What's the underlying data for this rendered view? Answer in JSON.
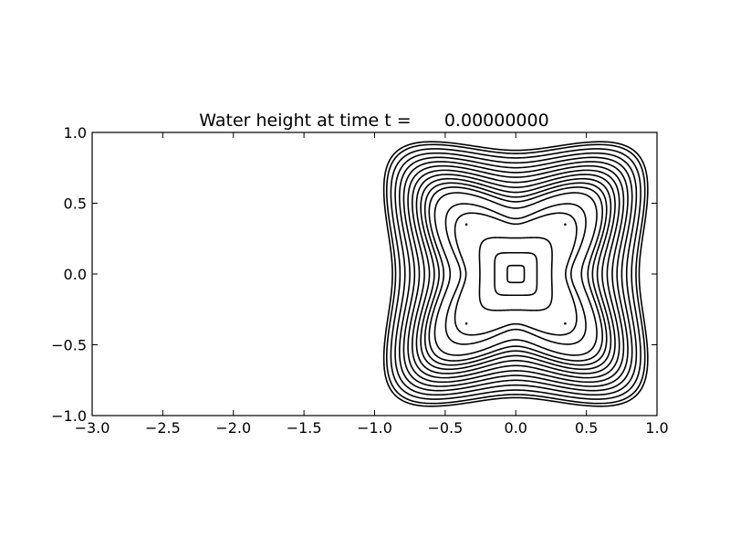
{
  "chart_data": {
    "type": "contour",
    "title": "Water height at time t =      0.00000000",
    "xlim": [
      -3.0,
      1.0
    ],
    "ylim": [
      -1.0,
      1.0
    ],
    "x_ticks": [
      -3.0,
      -2.5,
      -2.0,
      -1.5,
      -1.0,
      -0.5,
      0.0,
      0.5,
      1.0
    ],
    "y_ticks": [
      -1.0,
      -0.5,
      0.0,
      0.5,
      1.0
    ],
    "x_tick_labels": [
      "−3.0",
      "−2.5",
      "−2.0",
      "−1.5",
      "−1.0",
      "−0.5",
      "0.0",
      "0.5",
      "1.0"
    ],
    "y_tick_labels": [
      "−1.0",
      "−0.5",
      "0.0",
      "0.5",
      "1.0"
    ],
    "grid": false,
    "line_color": "#000000",
    "contours": {
      "shape": "four-armed star centered at (0,0), arms toward the domain corners",
      "center": [
        0.0,
        0.0
      ],
      "levels": [
        {
          "half_width": 0.06,
          "star": 0.0
        },
        {
          "half_width": 0.15,
          "star": 0.0
        },
        {
          "half_width": 0.26,
          "star": 0.05
        },
        {
          "half_width": 0.45,
          "star": 0.48
        },
        {
          "half_width": 0.52,
          "star": 0.55
        },
        {
          "half_width": 0.6,
          "star": 0.5
        },
        {
          "half_width": 0.64,
          "star": 0.45
        },
        {
          "half_width": 0.67,
          "star": 0.42
        },
        {
          "half_width": 0.7,
          "star": 0.39
        },
        {
          "half_width": 0.73,
          "star": 0.36
        },
        {
          "half_width": 0.76,
          "star": 0.33
        },
        {
          "half_width": 0.79,
          "star": 0.3
        },
        {
          "half_width": 0.82,
          "star": 0.28
        },
        {
          "half_width": 0.85,
          "star": 0.26
        },
        {
          "half_width": 0.88,
          "star": 0.24
        },
        {
          "half_width": 0.91,
          "star": 0.22
        },
        {
          "half_width": 0.94,
          "star": 0.21
        },
        {
          "half_width": 0.96,
          "star": 0.2
        }
      ]
    }
  }
}
